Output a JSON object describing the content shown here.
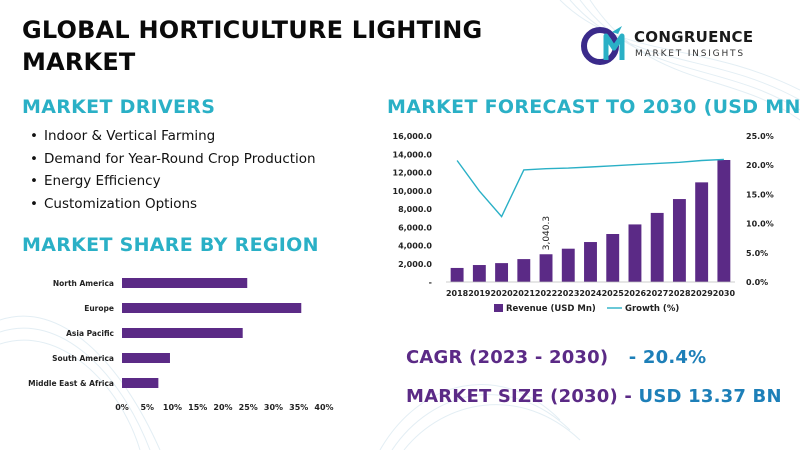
{
  "title": "GLOBAL HORTICULTURE LIGHTING MARKET",
  "logo": {
    "name": "CONGRUENCE",
    "subtitle": "MARKET INSIGHTS"
  },
  "drivers": {
    "heading": "MARKET DRIVERS",
    "items": [
      "Indoor & Vertical Farming",
      "Demand for Year-Round Crop Production",
      "Energy Efficiency",
      "Customization Options"
    ]
  },
  "region": {
    "heading": "MARKET SHARE BY REGION"
  },
  "forecast": {
    "heading": "MARKET FORECAST TO 2030 (USD MN)"
  },
  "stats": {
    "cagr_label": "CAGR (2023 - 2030)",
    "cagr_value": "- 20.4%",
    "size_label": "MARKET SIZE (2030) -",
    "size_value": "USD 13.37 BN"
  },
  "colors": {
    "accent": "#2ab0c6",
    "bar": "#5b2a86",
    "line": "#2ab0c6",
    "stat_value": "#1d7fb8"
  },
  "chart_data": [
    {
      "type": "bar",
      "orientation": "horizontal",
      "categories": [
        "North America",
        "Europe",
        "Asia Pacific",
        "South America",
        "Middle East & Africa"
      ],
      "values": [
        24.8,
        35.5,
        23.9,
        9.5,
        7.2
      ],
      "xlim": [
        0,
        40
      ],
      "xticks": [
        "0%",
        "5%",
        "10%",
        "15%",
        "20%",
        "25%",
        "30%",
        "35%",
        "40%"
      ],
      "grid": false
    },
    {
      "type": "bar",
      "categories": [
        "2018",
        "2019",
        "2020",
        "2021",
        "2022",
        "2023",
        "2024",
        "2025",
        "2026",
        "2027",
        "2028",
        "2029",
        "2030"
      ],
      "series": [
        {
          "name": "Revenue (USD Mn)",
          "type": "bar",
          "axis": "left",
          "values": [
            1540,
            1860,
            2070,
            2510,
            3040.3,
            3650,
            4380,
            5260,
            6310,
            7570,
            9090,
            10920,
            13370
          ]
        },
        {
          "name": "Growth (%)",
          "type": "line",
          "axis": "right",
          "values": [
            20.8,
            15.6,
            11.2,
            19.2,
            19.4,
            19.5,
            19.7,
            19.9,
            20.1,
            20.3,
            20.5,
            20.8,
            21.0
          ]
        }
      ],
      "data_labels": [
        {
          "category": "2022",
          "text": "3,040.3"
        }
      ],
      "ylim_left": [
        0,
        16000
      ],
      "yticks_left": [
        "-",
        "2,000.0",
        "4,000.0",
        "6,000.0",
        "8,000.0",
        "10,000.0",
        "12,000.0",
        "14,000.0",
        "16,000.0"
      ],
      "ylim_right": [
        0,
        25
      ],
      "yticks_right": [
        "0.0%",
        "5.0%",
        "10.0%",
        "15.0%",
        "20.0%",
        "25.0%"
      ],
      "legend": "bottom",
      "grid": false
    }
  ]
}
